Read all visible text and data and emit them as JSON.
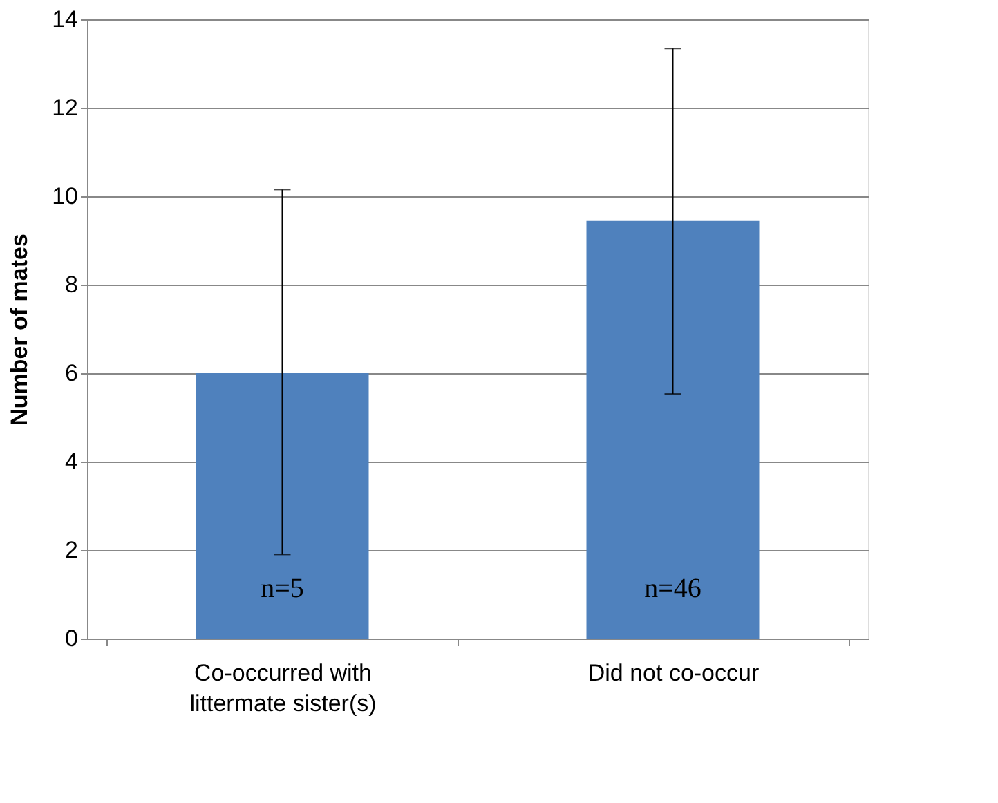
{
  "chart_data": {
    "type": "bar",
    "ylabel": "Number of mates",
    "categories": [
      "Co-occurred with\nlittermate sister(s)",
      "Did not co-occur"
    ],
    "values": [
      6.0,
      9.44
    ],
    "color": "#4f81bd",
    "errors": [
      [
        1.9,
        10.15
      ],
      [
        5.53,
        13.34
      ]
    ],
    "ylim": [
      0,
      14
    ],
    "yticks": [
      0,
      2,
      4,
      6,
      8,
      10,
      12,
      14
    ],
    "grid": "y",
    "annotations": [
      "n=5",
      "n=46"
    ]
  }
}
